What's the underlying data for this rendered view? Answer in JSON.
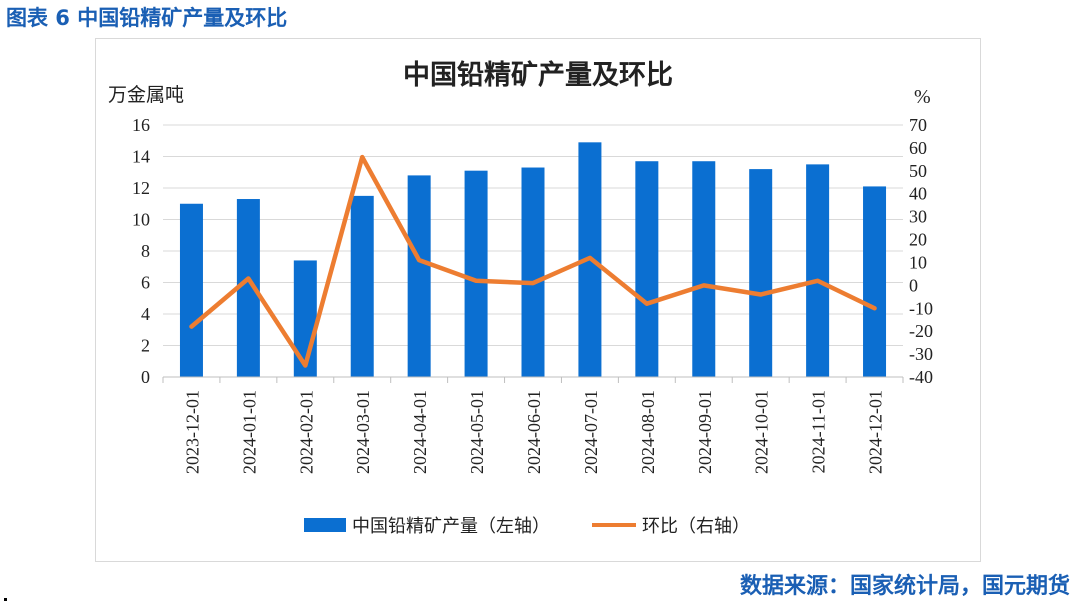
{
  "figure_caption": "图表 6 中国铅精矿产量及环比",
  "source": "数据来源：国家统计局，国元期货",
  "colors": {
    "bar": "#0b6fd1",
    "line": "#ed7d31",
    "caption": "#1a5fb4"
  },
  "chart_data": {
    "type": "bar",
    "title": "中国铅精矿产量及环比",
    "y_left_unit": "万金属吨",
    "y_right_unit": "%",
    "ylim_left": [
      0,
      16
    ],
    "ylim_right": [
      -40,
      70
    ],
    "yticks_left": [
      "0",
      "2",
      "4",
      "6",
      "8",
      "10",
      "12",
      "14",
      "16"
    ],
    "yticks_right": [
      "-40",
      "-30",
      "-20",
      "-10",
      "0",
      "10",
      "20",
      "30",
      "40",
      "50",
      "60",
      "70"
    ],
    "categories": [
      "2023-12-01",
      "2024-01-01",
      "2024-02-01",
      "2024-03-01",
      "2024-04-01",
      "2024-05-01",
      "2024-06-01",
      "2024-07-01",
      "2024-08-01",
      "2024-09-01",
      "2024-10-01",
      "2024-11-01",
      "2024-12-01"
    ],
    "series": [
      {
        "name": "中国铅精矿产量（左轴）",
        "type": "bar",
        "axis": "left",
        "values": [
          11.0,
          11.3,
          7.4,
          11.5,
          12.8,
          13.1,
          13.3,
          14.9,
          13.7,
          13.7,
          13.2,
          13.5,
          12.1
        ]
      },
      {
        "name": "环比（右轴）",
        "type": "line",
        "axis": "right",
        "values": [
          -18,
          3,
          -35,
          56,
          11,
          2,
          1,
          12,
          -8,
          0,
          -4,
          2,
          -10
        ]
      }
    ],
    "grid": "horizontal",
    "legend": "bottom"
  }
}
